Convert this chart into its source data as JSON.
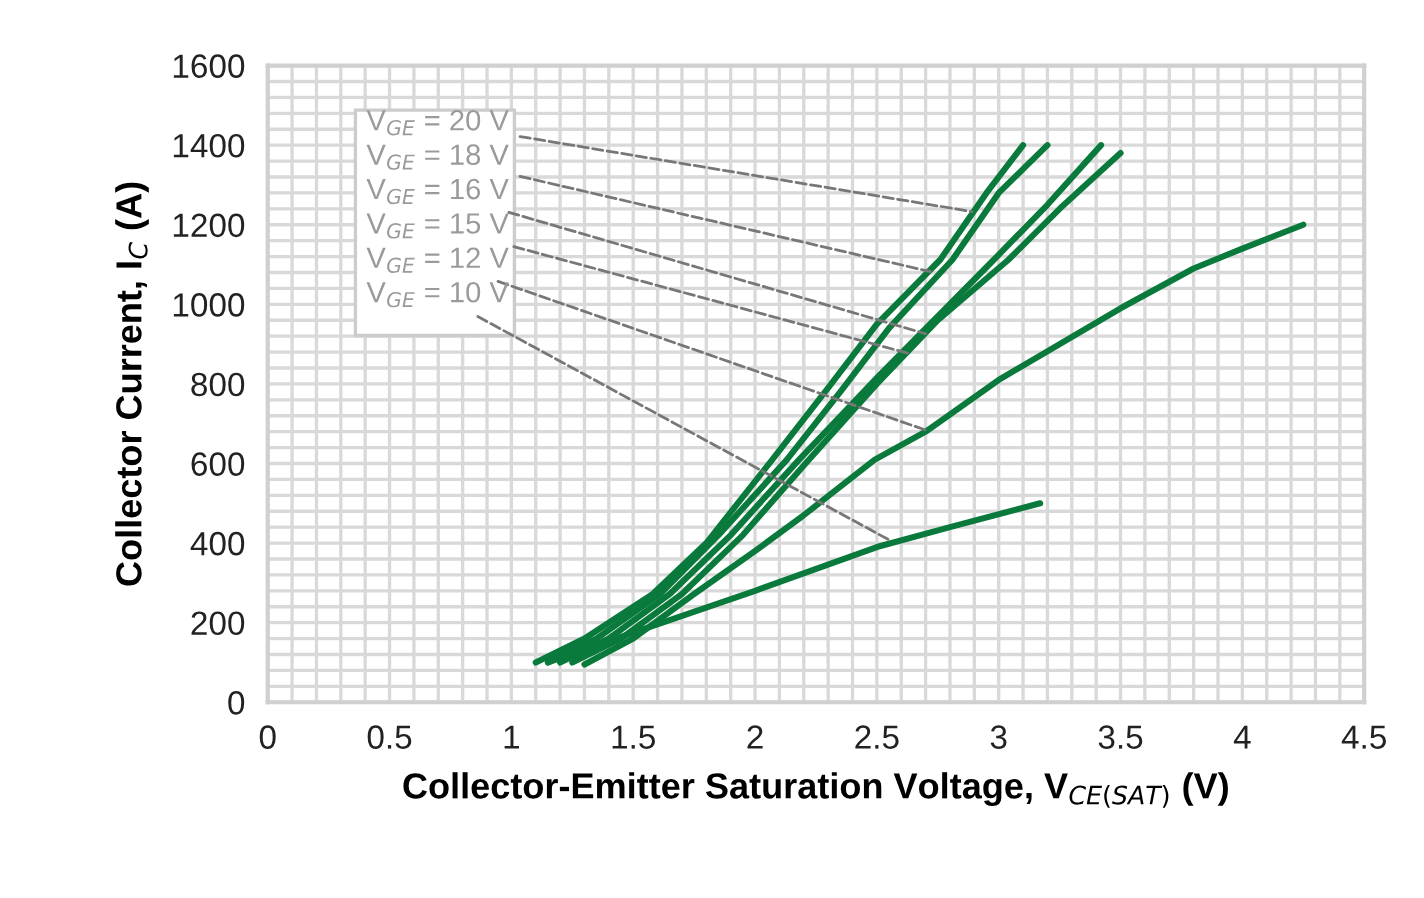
{
  "chart_data": {
    "type": "line",
    "xlabel": "Collector-Emitter Saturation Voltage, V$_{CE(SAT)}$ (V)",
    "ylabel": "Collector Current, I$_{C}$ (A)",
    "xlim": [
      0,
      4.5
    ],
    "xticks": [
      0,
      0.5,
      1,
      1.5,
      2,
      2.5,
      3,
      3.5,
      4,
      4.5
    ],
    "ylim": [
      0,
      1600
    ],
    "yticks": [
      0,
      200,
      400,
      600,
      800,
      1000,
      1200,
      1400,
      1600
    ],
    "grid": true,
    "line_style": "solid",
    "marker": "none",
    "series": [
      {
        "color": "#0a7a3c",
        "x": [
          1.1,
          1.3,
          1.58,
          1.8,
          2.07,
          2.3,
          2.5,
          2.76,
          2.95,
          3.1
        ],
        "values": [
          100,
          160,
          272,
          400,
          609,
          790,
          950,
          1112,
          1280,
          1400
        ]
      },
      {
        "color": "#0a7a3c",
        "x": [
          1.15,
          1.35,
          1.61,
          1.85,
          2.13,
          2.35,
          2.55,
          2.81,
          3.0,
          3.2
        ],
        "values": [
          100,
          160,
          272,
          420,
          609,
          780,
          940,
          1112,
          1280,
          1400
        ]
      },
      {
        "color": "#0a7a3c",
        "x": [
          1.2,
          1.4,
          1.65,
          1.9,
          2.18,
          2.5,
          2.98,
          3.2,
          3.42
        ],
        "values": [
          100,
          160,
          272,
          420,
          609,
          815,
          1112,
          1250,
          1400
        ]
      },
      {
        "color": "#0a7a3c",
        "x": [
          1.25,
          1.45,
          1.7,
          1.95,
          2.22,
          2.5,
          2.75,
          3.04,
          3.25,
          3.5
        ],
        "values": [
          100,
          160,
          272,
          420,
          609,
          800,
          960,
          1112,
          1240,
          1380
        ]
      },
      {
        "color": "#0a7a3c",
        "x": [
          1.3,
          1.5,
          1.75,
          2.0,
          2.2,
          2.49,
          2.7,
          3.0,
          3.5,
          3.8,
          4.0,
          4.25
        ],
        "values": [
          95,
          160,
          272,
          380,
          470,
          609,
          680,
          810,
          990,
          1090,
          1140,
          1200
        ]
      },
      {
        "color": "#0a7a3c",
        "x": [
          1.15,
          1.5,
          2.0,
          2.5,
          2.8,
          3.17
        ],
        "values": [
          100,
          175,
          280,
          390,
          440,
          500
        ]
      }
    ],
    "annotations": [
      {
        "text": "V$_{GE}$ = 20 V",
        "x": 2.89,
        "y": 1233
      },
      {
        "text": "V$_{GE}$ = 18 V",
        "x": 2.72,
        "y": 1082
      },
      {
        "text": "V$_{GE}$ = 16 V",
        "x": 2.7,
        "y": 926
      },
      {
        "text": "V$_{GE}$ = 15 V",
        "x": 2.64,
        "y": 875
      },
      {
        "text": "V$_{GE}$ = 12 V",
        "x": 2.7,
        "y": 684
      },
      {
        "text": "V$_{GE}$ = 10 V",
        "x": 2.55,
        "y": 408
      }
    ]
  }
}
